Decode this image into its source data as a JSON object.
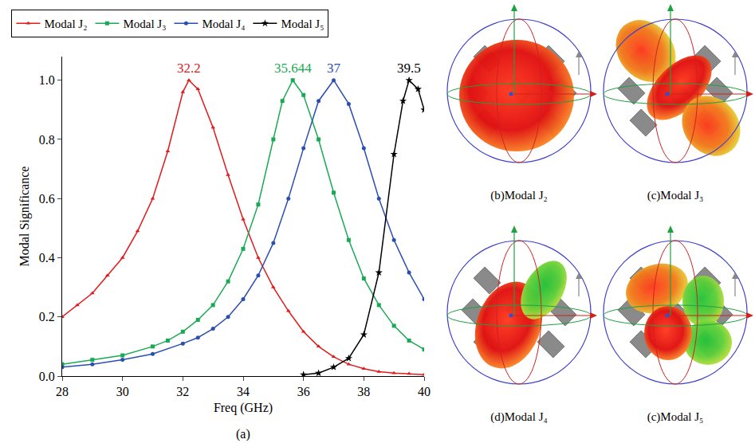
{
  "chart_data": {
    "type": "line",
    "x_label": "Freq (GHz)",
    "y_label": "Modal Significance",
    "caption": "(a)",
    "xlim": [
      28,
      40
    ],
    "xticks": [
      28,
      30,
      32,
      34,
      36,
      38,
      40
    ],
    "ylim": [
      0,
      1.08
    ],
    "yticks": [
      {
        "value": 0,
        "label": "0.0"
      },
      0.2,
      0.4,
      0.6,
      0.8,
      {
        "value": 1,
        "label": "1.0"
      }
    ],
    "grid": false,
    "legend": "top",
    "series": [
      {
        "name": "Modal J₂",
        "color": "#e31a1c",
        "marker": "triangle-up",
        "line_style": "solid",
        "x": [
          28,
          28.5,
          29,
          29.5,
          30,
          30.5,
          31,
          31.5,
          32,
          32.2,
          32.5,
          33,
          33.5,
          34,
          34.5,
          35,
          35.5,
          36,
          36.5,
          37,
          37.5,
          38,
          38.5,
          39,
          39.5,
          40
        ],
        "values": [
          0.2,
          0.24,
          0.28,
          0.34,
          0.4,
          0.49,
          0.6,
          0.76,
          0.96,
          1.0,
          0.97,
          0.84,
          0.68,
          0.53,
          0.4,
          0.3,
          0.22,
          0.15,
          0.1,
          0.065,
          0.04,
          0.025,
          0.015,
          0.01,
          0.008,
          0.005
        ]
      },
      {
        "name": "Modal J₃",
        "color": "#1aaa55",
        "marker": "square",
        "line_style": "solid",
        "x": [
          28,
          29,
          30,
          31,
          31.5,
          32,
          32.5,
          33,
          33.5,
          34,
          34.5,
          35,
          35.3,
          35.644,
          36,
          36.5,
          37,
          37.5,
          38,
          38.5,
          39,
          39.5,
          40
        ],
        "values": [
          0.04,
          0.055,
          0.07,
          0.1,
          0.12,
          0.15,
          0.19,
          0.24,
          0.32,
          0.43,
          0.58,
          0.8,
          0.93,
          1.0,
          0.95,
          0.8,
          0.62,
          0.46,
          0.33,
          0.24,
          0.17,
          0.12,
          0.09
        ]
      },
      {
        "name": "Modal J₄",
        "color": "#2b4fb0",
        "marker": "circle",
        "line_style": "solid",
        "x": [
          28,
          29,
          30,
          31,
          32,
          32.5,
          33,
          33.5,
          34,
          34.5,
          35,
          35.5,
          36,
          36.5,
          37,
          37.5,
          38,
          38.5,
          39,
          39.5,
          40
        ],
        "values": [
          0.03,
          0.04,
          0.055,
          0.075,
          0.11,
          0.13,
          0.16,
          0.2,
          0.26,
          0.34,
          0.45,
          0.6,
          0.77,
          0.93,
          1.0,
          0.92,
          0.77,
          0.6,
          0.46,
          0.35,
          0.26
        ]
      },
      {
        "name": "Modal J₅",
        "color": "#000000",
        "marker": "star",
        "line_style": "solid",
        "x": [
          36,
          36.5,
          37,
          37.5,
          38,
          38.5,
          39,
          39.3,
          39.5,
          39.8,
          40
        ],
        "values": [
          0.005,
          0.01,
          0.03,
          0.06,
          0.14,
          0.35,
          0.75,
          0.93,
          1.0,
          0.97,
          0.9
        ]
      }
    ],
    "annotations": [
      {
        "x": 32.2,
        "y": 1.0,
        "text": "32.2",
        "color": "#e31a1c"
      },
      {
        "x": 35.644,
        "y": 1.0,
        "text": "35.644",
        "color": "#1aaa55"
      },
      {
        "x": 37,
        "y": 1.0,
        "text": "37",
        "color": "#2b4fb0"
      },
      {
        "x": 39.5,
        "y": 1.0,
        "text": "39.5",
        "color": "#000000"
      }
    ]
  },
  "pattern_panels": [
    {
      "caption": "(b)Modal J₂"
    },
    {
      "caption": "(c)Modal J₃"
    },
    {
      "caption": "(d)Modal J₄"
    },
    {
      "caption": "(c)Modal J₅"
    }
  ]
}
